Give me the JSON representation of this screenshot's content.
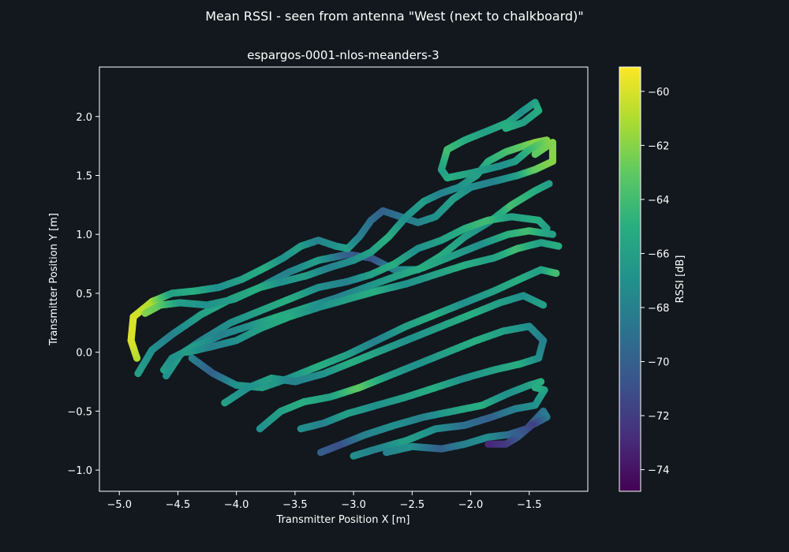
{
  "figure": {
    "suptitle": "Mean RSSI - seen from antenna \"West (next to chalkboard)\"",
    "background": "#12181e"
  },
  "chart_data": {
    "type": "scatter",
    "title": "espargos-0001-nlos-meanders-3",
    "xlabel": "Transmitter Position X [m]",
    "ylabel": "Transmitter Position Y [m]",
    "xlim": [
      -5.17,
      -1.0
    ],
    "ylim": [
      -1.18,
      2.42
    ],
    "xticks": [
      -5.0,
      -4.5,
      -4.0,
      -3.5,
      -3.0,
      -2.5,
      -2.0,
      -1.5
    ],
    "xtick_labels": [
      "−5.0",
      "−4.5",
      "−4.0",
      "−3.5",
      "−3.0",
      "−2.5",
      "−2.0",
      "−1.5"
    ],
    "yticks": [
      -1.0,
      -0.5,
      0.0,
      0.5,
      1.0,
      1.5,
      2.0
    ],
    "ytick_labels": [
      "−1.0",
      "−0.5",
      "0.0",
      "0.5",
      "1.0",
      "1.5",
      "2.0"
    ],
    "grid": false,
    "colormap": "viridis",
    "colorbar": {
      "label": "RSSI [dB]",
      "range": [
        -74.8,
        -59.1
      ],
      "ticks": [
        -60,
        -62,
        -64,
        -66,
        -68,
        -70,
        -72,
        -74
      ],
      "tick_labels": [
        "−60",
        "−62",
        "−64",
        "−66",
        "−68",
        "−70",
        "−72",
        "−74"
      ]
    },
    "paths": [
      {
        "points": [
          [
            -4.84,
            -0.18
          ],
          [
            -4.72,
            0.02
          ],
          [
            -4.55,
            0.15
          ],
          [
            -4.3,
            0.32
          ],
          [
            -4.05,
            0.45
          ],
          [
            -3.8,
            0.55
          ],
          [
            -3.55,
            0.68
          ],
          [
            -3.3,
            0.78
          ],
          [
            -3.05,
            0.83
          ],
          [
            -2.85,
            0.8
          ],
          [
            -2.65,
            0.7
          ],
          [
            -2.45,
            0.7
          ],
          [
            -2.25,
            0.82
          ],
          [
            -2.05,
            0.98
          ],
          [
            -1.85,
            1.1
          ],
          [
            -1.65,
            1.25
          ],
          [
            -1.45,
            1.37
          ],
          [
            -1.33,
            1.43
          ]
        ],
        "rssi": [
          -66,
          -67,
          -68,
          -66,
          -65,
          -67,
          -68,
          -66,
          -70,
          -71,
          -68,
          -66,
          -65,
          -66,
          -67,
          -64,
          -65,
          -66
        ]
      },
      {
        "points": [
          [
            -4.6,
            -0.2
          ],
          [
            -4.48,
            -0.02
          ],
          [
            -4.3,
            0.1
          ],
          [
            -4.05,
            0.25
          ],
          [
            -3.8,
            0.35
          ],
          [
            -3.55,
            0.45
          ],
          [
            -3.3,
            0.55
          ],
          [
            -3.05,
            0.6
          ],
          [
            -2.85,
            0.66
          ],
          [
            -2.65,
            0.75
          ],
          [
            -2.45,
            0.88
          ],
          [
            -2.25,
            0.95
          ],
          [
            -2.05,
            1.05
          ],
          [
            -1.85,
            1.12
          ],
          [
            -1.65,
            1.15
          ],
          [
            -1.42,
            1.12
          ],
          [
            -1.35,
            1.05
          ]
        ],
        "rssi": [
          -67,
          -66,
          -68,
          -67,
          -66,
          -65,
          -67,
          -68,
          -66,
          -65,
          -67,
          -66,
          -65,
          -64,
          -66,
          -65,
          -66
        ]
      },
      {
        "points": [
          [
            -4.62,
            -0.15
          ],
          [
            -4.55,
            -0.05
          ],
          [
            -4.35,
            0.05
          ],
          [
            -4.12,
            0.15
          ],
          [
            -3.9,
            0.22
          ],
          [
            -3.65,
            0.3
          ],
          [
            -3.4,
            0.38
          ],
          [
            -3.15,
            0.46
          ],
          [
            -2.9,
            0.55
          ],
          [
            -2.65,
            0.64
          ],
          [
            -2.4,
            0.72
          ],
          [
            -2.15,
            0.82
          ],
          [
            -1.9,
            0.92
          ],
          [
            -1.68,
            1.0
          ],
          [
            -1.5,
            1.03
          ],
          [
            -1.3,
            1.0
          ]
        ],
        "rssi": [
          -66,
          -67,
          -66,
          -68,
          -67,
          -65,
          -66,
          -68,
          -67,
          -66,
          -65,
          -66,
          -67,
          -65,
          -64,
          -66
        ]
      },
      {
        "points": [
          [
            -4.42,
            0.0
          ],
          [
            -4.2,
            0.05
          ],
          [
            -4.0,
            0.1
          ],
          [
            -3.8,
            0.2
          ],
          [
            -3.55,
            0.3
          ],
          [
            -3.3,
            0.38
          ],
          [
            -3.05,
            0.45
          ],
          [
            -2.8,
            0.52
          ],
          [
            -2.55,
            0.58
          ],
          [
            -2.3,
            0.66
          ],
          [
            -2.05,
            0.74
          ],
          [
            -1.8,
            0.8
          ],
          [
            -1.6,
            0.88
          ],
          [
            -1.4,
            0.93
          ],
          [
            -1.25,
            0.9
          ]
        ],
        "rssi": [
          -66,
          -68,
          -67,
          -66,
          -65,
          -67,
          -66,
          -65,
          -67,
          -66,
          -65,
          -66,
          -64,
          -66,
          -65
        ]
      },
      {
        "points": [
          [
            -4.38,
            -0.05
          ],
          [
            -4.2,
            -0.18
          ],
          [
            -4.0,
            -0.28
          ],
          [
            -3.78,
            -0.3
          ],
          [
            -3.55,
            -0.22
          ],
          [
            -3.3,
            -0.12
          ],
          [
            -3.05,
            -0.02
          ],
          [
            -2.8,
            0.1
          ],
          [
            -2.55,
            0.22
          ],
          [
            -2.3,
            0.32
          ],
          [
            -2.05,
            0.42
          ],
          [
            -1.8,
            0.52
          ],
          [
            -1.58,
            0.62
          ],
          [
            -1.4,
            0.7
          ],
          [
            -1.27,
            0.67
          ]
        ],
        "rssi": [
          -68,
          -70,
          -67,
          -66,
          -67,
          -65,
          -66,
          -68,
          -66,
          -65,
          -67,
          -66,
          -65,
          -66,
          -64
        ]
      },
      {
        "points": [
          [
            -4.1,
            -0.43
          ],
          [
            -3.9,
            -0.3
          ],
          [
            -3.7,
            -0.22
          ],
          [
            -3.5,
            -0.25
          ],
          [
            -3.25,
            -0.18
          ],
          [
            -3.0,
            -0.08
          ],
          [
            -2.75,
            0.02
          ],
          [
            -2.5,
            0.12
          ],
          [
            -2.25,
            0.22
          ],
          [
            -2.0,
            0.32
          ],
          [
            -1.75,
            0.42
          ],
          [
            -1.55,
            0.48
          ],
          [
            -1.38,
            0.4
          ]
        ],
        "rssi": [
          -66,
          -67,
          -66,
          -68,
          -67,
          -65,
          -66,
          -67,
          -66,
          -65,
          -66,
          -67,
          -66
        ]
      },
      {
        "points": [
          [
            -3.8,
            -0.65
          ],
          [
            -3.62,
            -0.5
          ],
          [
            -3.42,
            -0.42
          ],
          [
            -3.2,
            -0.38
          ],
          [
            -2.95,
            -0.3
          ],
          [
            -2.7,
            -0.2
          ],
          [
            -2.45,
            -0.1
          ],
          [
            -2.2,
            0.0
          ],
          [
            -1.95,
            0.1
          ],
          [
            -1.72,
            0.18
          ],
          [
            -1.5,
            0.22
          ],
          [
            -1.38,
            0.1
          ]
        ],
        "rssi": [
          -67,
          -66,
          -65,
          -66,
          -63,
          -66,
          -67,
          -66,
          -65,
          -66,
          -67,
          -68
        ]
      },
      {
        "points": [
          [
            -3.45,
            -0.65
          ],
          [
            -3.25,
            -0.6
          ],
          [
            -3.05,
            -0.52
          ],
          [
            -2.8,
            -0.45
          ],
          [
            -2.55,
            -0.38
          ],
          [
            -2.3,
            -0.3
          ],
          [
            -2.05,
            -0.22
          ],
          [
            -1.8,
            -0.15
          ],
          [
            -1.58,
            -0.1
          ],
          [
            -1.42,
            -0.05
          ],
          [
            -1.38,
            0.1
          ]
        ],
        "rssi": [
          -67,
          -68,
          -66,
          -67,
          -66,
          -65,
          -67,
          -66,
          -65,
          -67,
          -68
        ]
      },
      {
        "points": [
          [
            -3.28,
            -0.85
          ],
          [
            -3.1,
            -0.78
          ],
          [
            -2.9,
            -0.7
          ],
          [
            -2.65,
            -0.62
          ],
          [
            -2.4,
            -0.55
          ],
          [
            -2.15,
            -0.5
          ],
          [
            -1.9,
            -0.45
          ],
          [
            -1.68,
            -0.35
          ],
          [
            -1.5,
            -0.28
          ],
          [
            -1.4,
            -0.25
          ]
        ],
        "rssi": [
          -70,
          -71,
          -68,
          -67,
          -68,
          -66,
          -65,
          -67,
          -66,
          -65
        ]
      },
      {
        "points": [
          [
            -3.0,
            -0.88
          ],
          [
            -2.8,
            -0.82
          ],
          [
            -2.55,
            -0.75
          ],
          [
            -2.3,
            -0.65
          ],
          [
            -2.05,
            -0.62
          ],
          [
            -1.82,
            -0.55
          ],
          [
            -1.62,
            -0.48
          ],
          [
            -1.45,
            -0.45
          ],
          [
            -1.37,
            -0.32
          ],
          [
            -1.45,
            -0.3
          ]
        ],
        "rssi": [
          -67,
          -68,
          -66,
          -67,
          -69,
          -70,
          -68,
          -67,
          -66,
          -65
        ]
      },
      {
        "points": [
          [
            -2.72,
            -0.85
          ],
          [
            -2.5,
            -0.8
          ],
          [
            -2.25,
            -0.82
          ],
          [
            -2.05,
            -0.78
          ],
          [
            -1.85,
            -0.72
          ],
          [
            -1.68,
            -0.7
          ],
          [
            -1.52,
            -0.65
          ],
          [
            -1.38,
            -0.5
          ],
          [
            -1.35,
            -0.55
          ],
          [
            -1.48,
            -0.62
          ],
          [
            -1.6,
            -0.72
          ],
          [
            -1.7,
            -0.78
          ],
          [
            -1.85,
            -0.78
          ]
        ],
        "rssi": [
          -68,
          -67,
          -70,
          -68,
          -67,
          -69,
          -71,
          -69,
          -68,
          -72,
          -70,
          -72,
          -73
        ]
      },
      {
        "points": [
          [
            -4.85,
            -0.05
          ],
          [
            -4.9,
            0.1
          ],
          [
            -4.88,
            0.3
          ],
          [
            -4.72,
            0.43
          ],
          [
            -4.55,
            0.5
          ],
          [
            -4.35,
            0.52
          ],
          [
            -4.15,
            0.55
          ],
          [
            -3.95,
            0.62
          ],
          [
            -3.75,
            0.72
          ],
          [
            -3.6,
            0.8
          ],
          [
            -3.45,
            0.9
          ],
          [
            -3.3,
            0.95
          ],
          [
            -3.15,
            0.9
          ],
          [
            -3.05,
            0.88
          ],
          [
            -2.95,
            0.98
          ],
          [
            -2.85,
            1.12
          ],
          [
            -2.75,
            1.2
          ],
          [
            -2.6,
            1.15
          ],
          [
            -2.45,
            1.1
          ],
          [
            -2.3,
            1.15
          ],
          [
            -2.15,
            1.3
          ],
          [
            -2.0,
            1.4
          ],
          [
            -1.8,
            1.45
          ],
          [
            -1.6,
            1.5
          ],
          [
            -1.45,
            1.55
          ],
          [
            -1.3,
            1.62
          ],
          [
            -1.3,
            1.78
          ],
          [
            -1.45,
            1.68
          ]
        ],
        "rssi": [
          -61,
          -60,
          -60,
          -61,
          -66,
          -65,
          -67,
          -66,
          -65,
          -67,
          -66,
          -68,
          -67,
          -66,
          -68,
          -69,
          -70,
          -69,
          -68,
          -67,
          -66,
          -67,
          -68,
          -66,
          -63,
          -62,
          -62,
          -63
        ]
      },
      {
        "points": [
          [
            -4.78,
            0.33
          ],
          [
            -4.65,
            0.4
          ],
          [
            -4.48,
            0.42
          ],
          [
            -4.25,
            0.4
          ],
          [
            -4.02,
            0.45
          ],
          [
            -3.8,
            0.55
          ],
          [
            -3.6,
            0.6
          ],
          [
            -3.4,
            0.65
          ],
          [
            -3.2,
            0.72
          ],
          [
            -3.0,
            0.78
          ],
          [
            -2.85,
            0.85
          ],
          [
            -2.7,
            0.98
          ],
          [
            -2.55,
            1.15
          ],
          [
            -2.4,
            1.28
          ],
          [
            -2.25,
            1.35
          ],
          [
            -2.1,
            1.4
          ],
          [
            -1.95,
            1.5
          ],
          [
            -1.85,
            1.62
          ],
          [
            -1.7,
            1.7
          ],
          [
            -1.55,
            1.75
          ],
          [
            -1.45,
            1.78
          ],
          [
            -1.35,
            1.8
          ],
          [
            -1.5,
            1.72
          ],
          [
            -1.62,
            1.62
          ],
          [
            -1.75,
            1.58
          ],
          [
            -2.0,
            1.52
          ],
          [
            -2.2,
            1.48
          ],
          [
            -2.25,
            1.55
          ],
          [
            -2.2,
            1.72
          ],
          [
            -2.05,
            1.8
          ],
          [
            -1.85,
            1.88
          ],
          [
            -1.68,
            1.95
          ],
          [
            -1.55,
            2.05
          ],
          [
            -1.45,
            2.12
          ],
          [
            -1.42,
            2.05
          ],
          [
            -1.55,
            1.95
          ],
          [
            -1.7,
            1.9
          ]
        ],
        "rssi": [
          -62,
          -63,
          -66,
          -67,
          -66,
          -65,
          -67,
          -66,
          -68,
          -67,
          -66,
          -65,
          -67,
          -66,
          -68,
          -67,
          -66,
          -65,
          -64,
          -63,
          -62,
          -62,
          -64,
          -66,
          -67,
          -66,
          -65,
          -66,
          -64,
          -65,
          -66,
          -65,
          -67,
          -66,
          -65,
          -66,
          -65
        ]
      }
    ]
  }
}
